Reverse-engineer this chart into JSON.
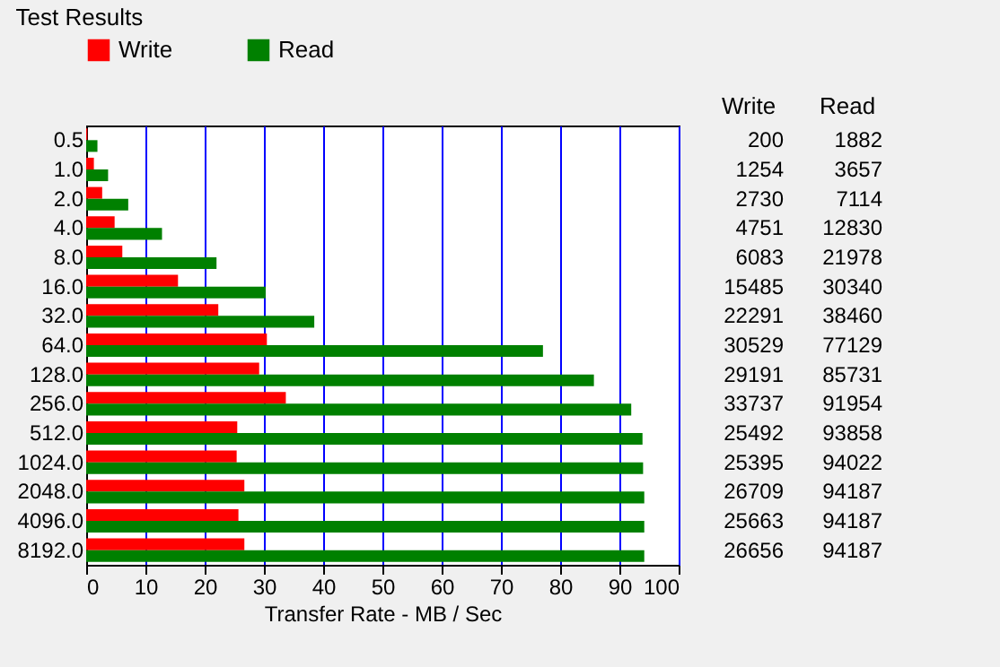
{
  "chart_data": {
    "type": "bar",
    "orientation": "horizontal",
    "title": "Test Results",
    "xlabel": "Transfer Rate - MB / Sec",
    "categories": [
      "0.5",
      "1.0",
      "2.0",
      "4.0",
      "8.0",
      "16.0",
      "32.0",
      "64.0",
      "128.0",
      "256.0",
      "512.0",
      "1024.0",
      "2048.0",
      "4096.0",
      "8192.0"
    ],
    "series": [
      {
        "name": "Write",
        "color": "#ff0000",
        "values": [
          0.2,
          1.3,
          2.7,
          4.8,
          6.1,
          15.5,
          22.3,
          30.5,
          29.2,
          33.7,
          25.5,
          25.4,
          26.7,
          25.7,
          26.7
        ]
      },
      {
        "name": "Read",
        "color": "#008000",
        "values": [
          1.9,
          3.7,
          7.1,
          12.8,
          22.0,
          30.3,
          38.5,
          77.1,
          85.7,
          92.0,
          93.9,
          94.0,
          94.2,
          94.2,
          94.2
        ]
      }
    ],
    "annotations": [
      "200",
      "1882",
      "1254",
      "3657",
      "2730",
      "7114",
      "4751",
      "12830",
      "6083",
      "21978",
      "15485",
      "30340",
      "22291",
      "38460",
      "30529",
      "77129",
      "29191",
      "85731",
      "33737",
      "91954",
      "25492",
      "93858",
      "25395",
      "94022",
      "26709",
      "94187",
      "25663",
      "94187",
      "26656",
      "94187"
    ],
    "xlim": [
      0,
      100
    ],
    "xticks": [
      0,
      10,
      20,
      30,
      40,
      50,
      60,
      70,
      80,
      90,
      100
    ],
    "grid": "x",
    "legend": "top"
  }
}
